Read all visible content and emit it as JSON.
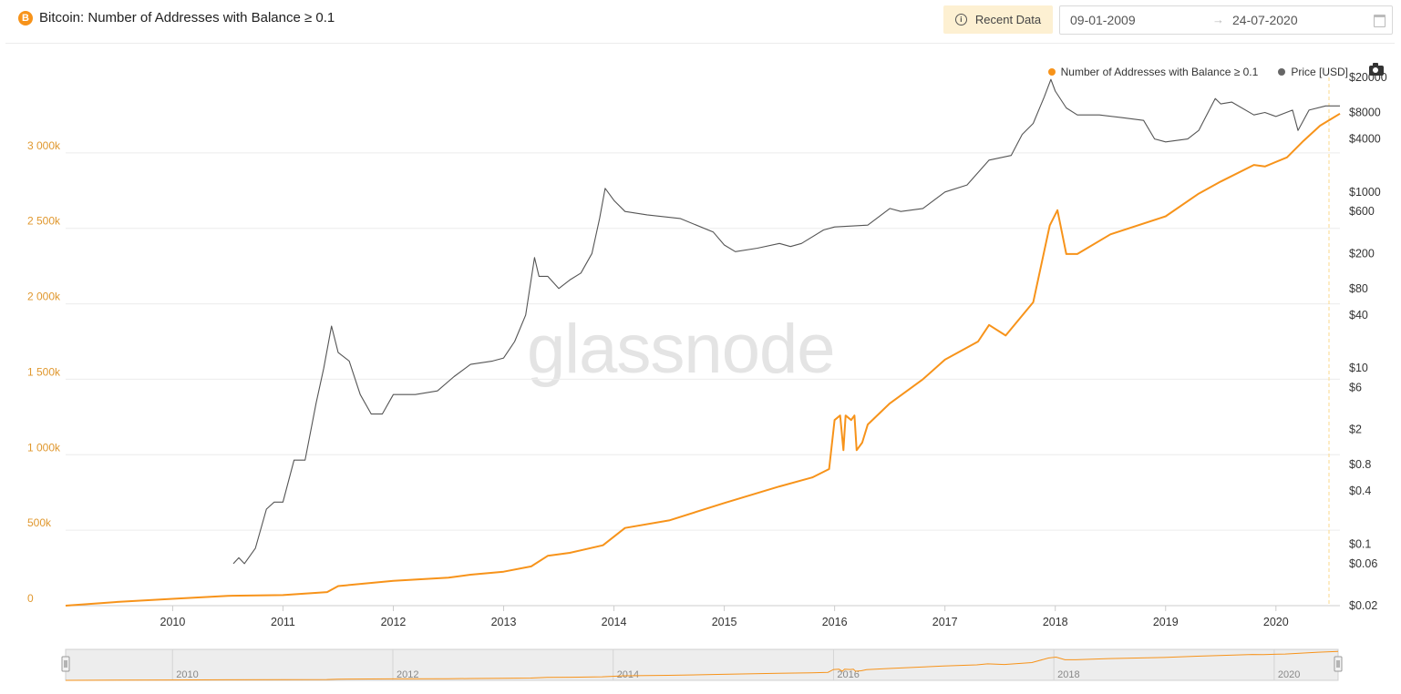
{
  "header": {
    "logo_letter": "B",
    "title": "Bitcoin: Number of Addresses with Balance ≥ 0.1",
    "recent_label": "Recent Data",
    "date_start": "09-01-2009",
    "date_end": "24-07-2020",
    "arrow": "→"
  },
  "watermark": "glassnode",
  "colors": {
    "primary": "#f7931a",
    "price": "#555555",
    "nav_bg": "#ededed"
  },
  "chart_data": {
    "type": "line",
    "title": "Bitcoin: Number of Addresses with Balance ≥ 0.1",
    "xlim": [
      2009.03,
      2020.58
    ],
    "x_ticks": [
      "2010",
      "2011",
      "2012",
      "2013",
      "2014",
      "2015",
      "2016",
      "2017",
      "2018",
      "2019",
      "2020"
    ],
    "y_left": {
      "scale": "linear",
      "range": [
        0,
        3500000
      ],
      "ticks": [
        0,
        500000,
        1000000,
        1500000,
        2000000,
        2500000,
        3000000
      ],
      "tick_labels": [
        "0",
        "500k",
        "1 000k",
        "1 500k",
        "2 000k",
        "2 500k",
        "3 000k"
      ]
    },
    "y_right": {
      "scale": "log",
      "range": [
        0.02,
        20000
      ],
      "ticks": [
        0.02,
        0.06,
        0.1,
        0.4,
        0.8,
        2,
        6,
        10,
        40,
        80,
        200,
        600,
        1000,
        4000,
        8000,
        20000
      ],
      "tick_labels": [
        "$0.02",
        "$0.06",
        "$0.1",
        "$0.4",
        "$0.8",
        "$2",
        "$6",
        "$10",
        "$40",
        "$80",
        "$200",
        "$600",
        "$1000",
        "$4000",
        "$8000",
        "$20000"
      ]
    },
    "legend": [
      "Number of Addresses with Balance ≥ 0.1",
      "Price [USD]"
    ],
    "legend_position": "top-right",
    "grid": true,
    "series": [
      {
        "name": "Number of Addresses with Balance ≥ 0.1",
        "axis": "left",
        "color": "#f7931a",
        "x": [
          2009.03,
          2009.5,
          2010.0,
          2010.5,
          2011.0,
          2011.4,
          2011.5,
          2012.0,
          2012.5,
          2012.7,
          2013.0,
          2013.25,
          2013.4,
          2013.6,
          2013.9,
          2014.1,
          2014.5,
          2015.0,
          2015.5,
          2015.8,
          2015.95,
          2016.0,
          2016.05,
          2016.08,
          2016.1,
          2016.15,
          2016.18,
          2016.2,
          2016.25,
          2016.3,
          2016.5,
          2016.8,
          2017.0,
          2017.3,
          2017.4,
          2017.55,
          2017.8,
          2017.95,
          2018.02,
          2018.1,
          2018.2,
          2018.5,
          2019.0,
          2019.3,
          2019.5,
          2019.8,
          2019.9,
          2020.1,
          2020.25,
          2020.4,
          2020.58
        ],
        "y": [
          0,
          25000,
          45000,
          65000,
          70000,
          90000,
          130000,
          165000,
          185000,
          205000,
          225000,
          260000,
          330000,
          350000,
          400000,
          515000,
          565000,
          680000,
          790000,
          850000,
          905000,
          1230000,
          1260000,
          1030000,
          1260000,
          1230000,
          1260000,
          1030000,
          1080000,
          1200000,
          1340000,
          1500000,
          1630000,
          1750000,
          1860000,
          1790000,
          2010000,
          2520000,
          2620000,
          2330000,
          2330000,
          2460000,
          2580000,
          2730000,
          2810000,
          2920000,
          2910000,
          2970000,
          3080000,
          3180000,
          3260000
        ]
      },
      {
        "name": "Price [USD]",
        "axis": "right",
        "color": "#555555",
        "x": [
          2010.55,
          2010.6,
          2010.65,
          2010.75,
          2010.85,
          2010.92,
          2011.0,
          2011.1,
          2011.2,
          2011.3,
          2011.37,
          2011.44,
          2011.5,
          2011.6,
          2011.7,
          2011.8,
          2011.9,
          2012.0,
          2012.2,
          2012.4,
          2012.55,
          2012.7,
          2012.9,
          2013.0,
          2013.1,
          2013.2,
          2013.28,
          2013.32,
          2013.4,
          2013.5,
          2013.6,
          2013.7,
          2013.8,
          2013.87,
          2013.92,
          2014.0,
          2014.1,
          2014.3,
          2014.6,
          2014.9,
          2015.0,
          2015.1,
          2015.3,
          2015.5,
          2015.6,
          2015.7,
          2015.9,
          2016.0,
          2016.3,
          2016.5,
          2016.6,
          2016.8,
          2017.0,
          2017.2,
          2017.4,
          2017.6,
          2017.7,
          2017.8,
          2017.9,
          2017.96,
          2018.0,
          2018.1,
          2018.2,
          2018.4,
          2018.6,
          2018.8,
          2018.9,
          2019.0,
          2019.2,
          2019.3,
          2019.45,
          2019.5,
          2019.6,
          2019.8,
          2019.9,
          2020.0,
          2020.15,
          2020.2,
          2020.3,
          2020.45,
          2020.58
        ],
        "y": [
          0.06,
          0.07,
          0.06,
          0.09,
          0.25,
          0.3,
          0.3,
          0.9,
          0.9,
          4,
          10,
          30,
          15,
          12,
          5,
          3,
          3,
          5,
          5,
          5.5,
          8,
          11,
          12,
          13,
          20,
          40,
          180,
          110,
          110,
          80,
          100,
          120,
          200,
          500,
          1100,
          800,
          600,
          550,
          500,
          350,
          250,
          210,
          230,
          260,
          240,
          260,
          370,
          400,
          420,
          650,
          600,
          650,
          1000,
          1200,
          2300,
          2600,
          4500,
          6000,
          12000,
          19000,
          14000,
          9000,
          7500,
          7500,
          7000,
          6500,
          4000,
          3700,
          4000,
          5000,
          11500,
          10000,
          10500,
          7500,
          8000,
          7200,
          8500,
          5000,
          8500,
          9500,
          9500
        ]
      }
    ]
  }
}
